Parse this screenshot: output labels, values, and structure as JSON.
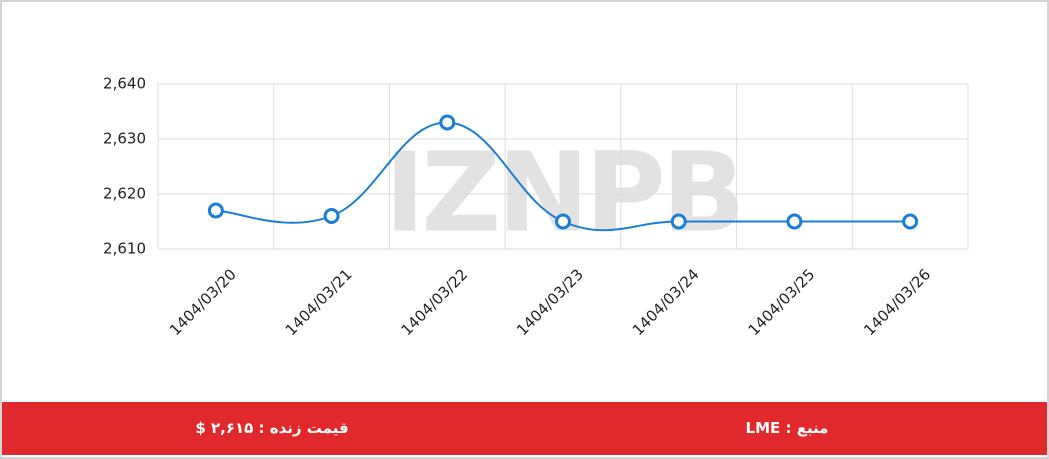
{
  "chart_data": {
    "type": "line",
    "watermark": "IZNPB",
    "categories": [
      "1404/03/20",
      "1404/03/21",
      "1404/03/22",
      "1404/03/23",
      "1404/03/24",
      "1404/03/25",
      "1404/03/26"
    ],
    "values": [
      2617,
      2616,
      2633,
      2615,
      2615,
      2615,
      2615
    ],
    "color": "#1a7fd4",
    "ylim": [
      2610,
      2640
    ],
    "yticks": [
      {
        "value": 2610,
        "label": "2,610"
      },
      {
        "value": 2620,
        "label": "2,620"
      },
      {
        "value": 2630,
        "label": "2,630"
      },
      {
        "value": 2640,
        "label": "2,640"
      }
    ],
    "grid": true
  },
  "footer": {
    "price": "قیمت زنده : ۲,۶۱۵ $",
    "source": "منبع : LME"
  }
}
